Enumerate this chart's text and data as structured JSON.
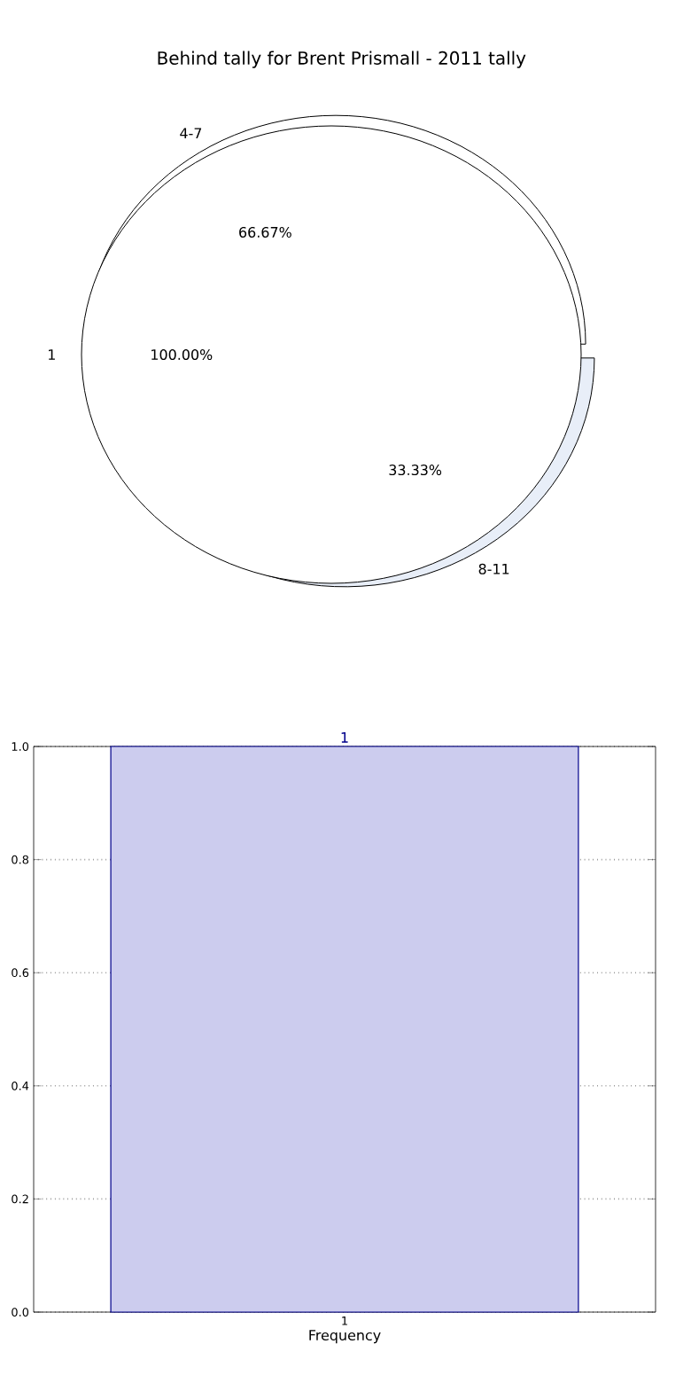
{
  "chart_data": [
    {
      "type": "pie",
      "title": "Behind tally for Brent Prismall - 2011 tally",
      "categories": [
        "1"
      ],
      "values": [
        100
      ],
      "colors": [
        "#ffffff"
      ],
      "value_labels": [
        "100.00%"
      ]
    },
    {
      "type": "pie",
      "categories": [
        "4-7",
        "8-11"
      ],
      "values": [
        66.67,
        33.33
      ],
      "colors": [
        "#ffffff",
        "#e8eef8"
      ],
      "value_labels": [
        "66.67%",
        "33.33%"
      ]
    },
    {
      "type": "bar",
      "categories": [
        "1"
      ],
      "values": [
        1
      ],
      "color": "#ccccee",
      "xlabel": "Frequency",
      "ylim": [
        0,
        1
      ],
      "yticks": [
        {
          "value": 0,
          "label": "0.0"
        },
        {
          "value": 0.2,
          "label": "0.2"
        },
        {
          "value": 0.4,
          "label": "0.4"
        },
        {
          "value": 0.6,
          "label": "0.6"
        },
        {
          "value": 0.8,
          "label": "0.8"
        },
        {
          "value": 1,
          "label": "1.0"
        }
      ],
      "grid": true,
      "data_labels": true
    }
  ]
}
